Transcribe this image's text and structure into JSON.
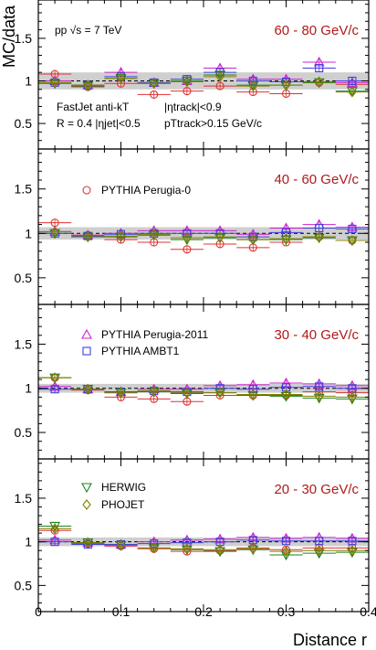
{
  "chart_data": {
    "type": "scatter",
    "title": "",
    "xlabel": "Distance r",
    "ylabel": "MC/data",
    "xlim": [
      0,
      0.4
    ],
    "ylim": [
      0.2,
      1.95
    ],
    "x_ticks": [
      "0",
      "0.1",
      "0.2",
      "0.3",
      "0.4"
    ],
    "y_ticks": [
      "0.5",
      "1",
      "1.5"
    ],
    "grid": false,
    "x": [
      0.02,
      0.06,
      0.1,
      0.14,
      0.18,
      0.22,
      0.26,
      0.3,
      0.34,
      0.38
    ],
    "info_lines": [
      "pp √s = 7 TeV",
      "FastJet anti-kT",
      "|ηtrack|<0.9",
      "R = 0.4  |ηjet|<0.5",
      "pTtrack>0.15 GeV/c"
    ],
    "legend": [
      {
        "name": "PYTHIA Perugia-0",
        "marker": "circle",
        "color": "#e03030"
      },
      {
        "name": "PYTHIA Perugia-2011",
        "marker": "triangle-up",
        "color": "#d020d0"
      },
      {
        "name": "PYTHIA AMBT1",
        "marker": "square",
        "color": "#4040e0"
      },
      {
        "name": "HERWIG",
        "marker": "triangle-down",
        "color": "#208020"
      },
      {
        "name": "PHOJET",
        "marker": "diamond",
        "color": "#808000"
      }
    ],
    "panels": [
      {
        "range_label": "60 - 80 GeV/c",
        "band": [
          0.9,
          1.1
        ],
        "series": [
          {
            "name": "PYTHIA Perugia-0",
            "values": [
              1.08,
              0.93,
              0.97,
              0.84,
              0.88,
              0.94,
              0.87,
              0.85,
              0.98,
              0.96
            ]
          },
          {
            "name": "PYTHIA Perugia-2011",
            "values": [
              1.0,
              0.95,
              1.1,
              0.98,
              1.0,
              1.15,
              1.02,
              1.02,
              1.22,
              0.98
            ]
          },
          {
            "name": "PYTHIA AMBT1",
            "values": [
              0.98,
              0.95,
              1.05,
              0.98,
              1.02,
              1.1,
              1.0,
              0.99,
              1.15,
              1.0
            ]
          },
          {
            "name": "HERWIG",
            "values": [
              0.97,
              0.94,
              1.03,
              0.97,
              1.0,
              1.07,
              0.95,
              0.95,
              0.98,
              0.88
            ]
          },
          {
            "name": "PHOJET",
            "values": [
              0.98,
              0.95,
              1.03,
              0.97,
              0.99,
              1.05,
              0.94,
              0.95,
              0.99,
              0.87
            ]
          }
        ]
      },
      {
        "range_label": "40 - 60 GeV/c",
        "band": [
          0.93,
          1.07
        ],
        "series": [
          {
            "name": "PYTHIA Perugia-0",
            "values": [
              1.12,
              0.98,
              0.93,
              0.9,
              0.82,
              0.88,
              0.84,
              0.9,
              0.96,
              0.92
            ]
          },
          {
            "name": "PYTHIA Perugia-2011",
            "values": [
              1.02,
              0.98,
              1.0,
              1.03,
              1.03,
              1.03,
              0.99,
              1.06,
              1.1,
              1.07
            ]
          },
          {
            "name": "PYTHIA AMBT1",
            "values": [
              1.0,
              0.97,
              0.99,
              1.0,
              1.0,
              1.0,
              0.96,
              1.01,
              1.06,
              1.05
            ]
          },
          {
            "name": "HERWIG",
            "values": [
              1.0,
              0.96,
              0.96,
              0.98,
              0.93,
              0.95,
              0.93,
              0.93,
              0.95,
              0.92
            ]
          },
          {
            "name": "PHOJET",
            "values": [
              1.02,
              0.96,
              0.97,
              0.99,
              0.95,
              0.96,
              0.93,
              0.94,
              0.96,
              0.92
            ]
          }
        ]
      },
      {
        "range_label": "30 - 40 GeV/c",
        "band": [
          0.95,
          1.05
        ],
        "series": [
          {
            "name": "PYTHIA Perugia-0",
            "values": [
              1.12,
              0.98,
              0.9,
              0.88,
              0.85,
              0.92,
              0.92,
              0.92,
              0.96,
              0.95
            ]
          },
          {
            "name": "PYTHIA Perugia-2011",
            "values": [
              1.02,
              0.99,
              0.96,
              0.99,
              0.99,
              1.03,
              1.04,
              1.06,
              1.05,
              1.03
            ]
          },
          {
            "name": "PYTHIA AMBT1",
            "values": [
              0.99,
              0.99,
              0.96,
              0.97,
              0.96,
              1.0,
              0.99,
              1.01,
              1.02,
              1.0
            ]
          },
          {
            "name": "HERWIG",
            "values": [
              1.12,
              0.99,
              0.95,
              0.96,
              0.94,
              0.95,
              0.92,
              0.91,
              0.89,
              0.88
            ]
          },
          {
            "name": "PHOJET",
            "values": [
              1.12,
              0.99,
              0.95,
              0.97,
              0.95,
              0.95,
              0.93,
              0.93,
              0.91,
              0.9
            ]
          }
        ]
      },
      {
        "range_label": "20 - 30 GeV/c",
        "band": [
          0.95,
          1.05
        ],
        "series": [
          {
            "name": "PYTHIA Perugia-0",
            "values": [
              1.13,
              0.98,
              0.95,
              0.92,
              0.89,
              0.9,
              0.93,
              0.91,
              0.93,
              0.93
            ]
          },
          {
            "name": "PYTHIA Perugia-2011",
            "values": [
              1.02,
              0.99,
              0.97,
              1.0,
              1.02,
              1.03,
              1.05,
              1.04,
              1.05,
              1.04
            ]
          },
          {
            "name": "PYTHIA AMBT1",
            "values": [
              1.0,
              0.97,
              0.97,
              0.98,
              0.99,
              1.0,
              1.02,
              1.01,
              1.01,
              1.01
            ]
          },
          {
            "name": "HERWIG",
            "values": [
              1.18,
              0.99,
              0.96,
              0.93,
              0.91,
              0.89,
              0.91,
              0.85,
              0.87,
              0.88
            ]
          },
          {
            "name": "PHOJET",
            "values": [
              1.15,
              0.99,
              0.96,
              0.93,
              0.92,
              0.91,
              0.92,
              0.89,
              0.9,
              0.9
            ]
          }
        ]
      }
    ]
  }
}
